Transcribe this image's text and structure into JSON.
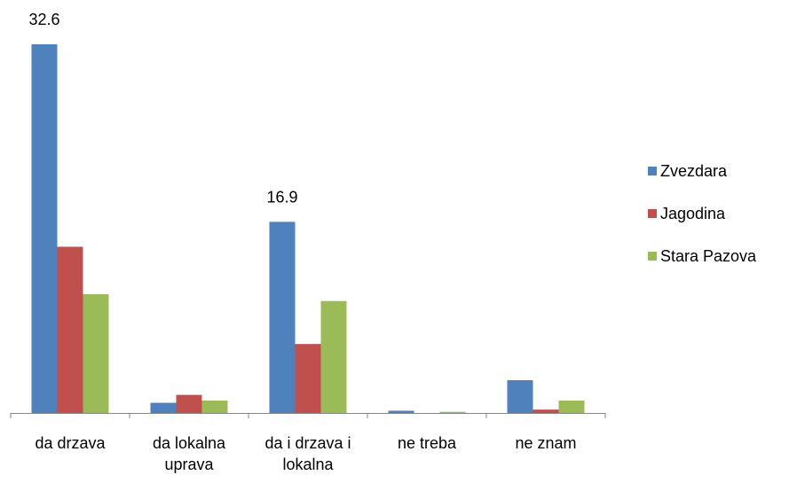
{
  "chart_data": {
    "type": "bar",
    "categories": [
      "da drzava",
      "da lokalna uprava",
      "da i drzava i lokalna",
      "ne treba",
      "ne znam"
    ],
    "series": [
      {
        "name": "Zvezdara",
        "color": "#4f81bd",
        "values": [
          32.6,
          0.9,
          16.9,
          0.2,
          2.9
        ],
        "value_labels": [
          "32.6",
          null,
          "16.9",
          null,
          null
        ]
      },
      {
        "name": "Jagodina",
        "color": "#c0504d",
        "values": [
          14.7,
          1.6,
          6.1,
          0,
          0.3
        ]
      },
      {
        "name": "Stara Pazova",
        "color": "#9bbb59",
        "values": [
          10.5,
          1.1,
          9.9,
          0.1,
          1.1
        ]
      }
    ],
    "legend": "right"
  }
}
